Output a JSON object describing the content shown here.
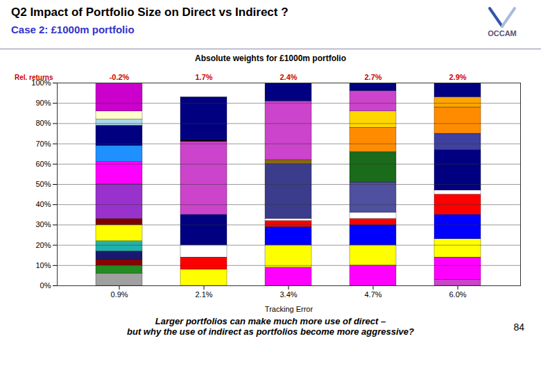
{
  "chart_data": {
    "type": "bar",
    "stacked": true,
    "title": "Q2 Impact of Portfolio Size on Direct vs Indirect ?",
    "subtitle": "Case 2: £1000m portfolio",
    "chart_title": "Absolute weights for £1000m portfolio",
    "x_label": "Tracking Error",
    "categories": [
      "0.9%",
      "2.1%",
      "3.4%",
      "4.7%",
      "6.0%"
    ],
    "top_labels": {
      "name": "Rel. returns",
      "labels": [
        "-0.2%",
        "1.7%",
        "2.4%",
        "2.7%",
        "2.9%"
      ],
      "color": "#cc0000"
    },
    "series": [
      {
        "values": [
          6,
          8,
          9,
          10,
          3
        ],
        "colors": [
          "#a0a0a0",
          "#ffff00",
          "#ff00ff",
          "#ff00ff",
          "#cc44cc"
        ]
      },
      {
        "values": [
          4,
          6,
          11,
          10,
          11
        ],
        "colors": [
          "#228B22",
          "#ff0000",
          "#ffff00",
          "#ffff00",
          "#ff00ff"
        ]
      },
      {
        "values": [
          3,
          6,
          9,
          10,
          9
        ],
        "colors": [
          "#8B0000",
          "#ffffff",
          "#0000ff",
          "#0000ff",
          "#ffff00"
        ]
      },
      {
        "values": [
          4,
          15,
          3,
          3,
          12
        ],
        "colors": [
          "#191970",
          "#000080",
          "#ff0000",
          "#ff0000",
          "#0000ff"
        ]
      },
      {
        "values": [
          5,
          36,
          1,
          3,
          10
        ],
        "colors": [
          "#20B2AA",
          "#cc44cc",
          "#ffffff",
          "#ffffff",
          "#ff0000"
        ]
      },
      {
        "values": [
          8,
          1,
          27,
          15,
          2
        ],
        "colors": [
          "#ffff00",
          "#000000",
          "#3c3c8c",
          "#5050a0",
          "#ffffff"
        ]
      },
      {
        "values": [
          3,
          21,
          2,
          15,
          20
        ],
        "colors": [
          "#800000",
          "#000080",
          "#8B6914",
          "#1a6b1a",
          "#000080"
        ]
      },
      {
        "values": [
          17,
          null,
          29,
          12,
          8
        ],
        "colors": [
          "#9932CC",
          null,
          "#cc44cc",
          "#ff8c00",
          "#4040a0"
        ]
      },
      {
        "values": [
          11,
          null,
          9,
          8,
          13
        ],
        "colors": [
          "#ff00ff",
          null,
          "#000080",
          "#ffd700",
          "#ff8c00"
        ]
      },
      {
        "values": [
          8,
          null,
          null,
          10,
          5
        ],
        "colors": [
          "#1E90FF",
          null,
          null,
          "#cc44cc",
          "#ffa500"
        ]
      },
      {
        "values": [
          10,
          null,
          null,
          4,
          7
        ],
        "colors": [
          "#000080",
          null,
          null,
          "#000080",
          "#000080"
        ]
      },
      {
        "values": [
          3,
          null,
          null,
          null,
          null
        ],
        "colors": [
          "#ADD8E6",
          null,
          null,
          null,
          null
        ]
      },
      {
        "values": [
          4,
          null,
          null,
          null,
          null
        ],
        "colors": [
          "#ffffcc",
          null,
          null,
          null,
          null
        ]
      },
      {
        "values": [
          14,
          null,
          null,
          null,
          null
        ],
        "colors": [
          "#cc00cc",
          null,
          null,
          null,
          null
        ]
      }
    ],
    "ylim": [
      0,
      100
    ],
    "yticks": [
      {
        "value": 0,
        "label": "0%"
      },
      {
        "value": 10,
        "label": "10%"
      },
      {
        "value": 20,
        "label": "20%"
      },
      {
        "value": 30,
        "label": "30%"
      },
      {
        "value": 40,
        "label": "40%"
      },
      {
        "value": 50,
        "label": "50%"
      },
      {
        "value": 60,
        "label": "60%"
      },
      {
        "value": 70,
        "label": "70%"
      },
      {
        "value": 80,
        "label": "80%"
      },
      {
        "value": 90,
        "label": "90%"
      },
      {
        "value": 100,
        "label": "100%"
      }
    ],
    "grid": true,
    "footnote": [
      "Larger portfolios can make much more use of direct –",
      "but why the use of indirect as portfolios become more aggressive?"
    ],
    "page_number": "84",
    "logo": "OCCAM"
  }
}
